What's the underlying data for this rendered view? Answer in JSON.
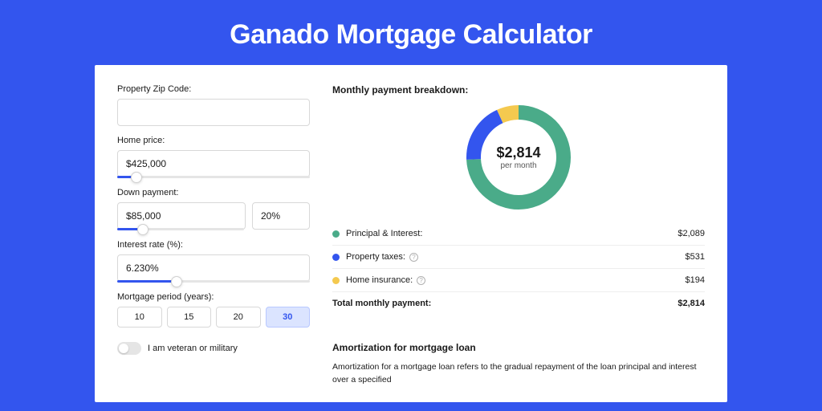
{
  "title": "Ganado Mortgage Calculator",
  "colors": {
    "page_bg": "#3355ee",
    "card_bg": "#ffffff",
    "text": "#1a1a1a",
    "border": "#d8d8d8",
    "slider_fill": "#3355ee",
    "period_active_bg": "#dbe4ff"
  },
  "form": {
    "zip": {
      "label": "Property Zip Code:",
      "value": ""
    },
    "home_price": {
      "label": "Home price:",
      "value": "$425,000",
      "slider_pct": 10
    },
    "down_payment": {
      "label": "Down payment:",
      "amount": "$85,000",
      "percent": "20%",
      "slider_pct": 20
    },
    "interest_rate": {
      "label": "Interest rate (%):",
      "value": "6.230%",
      "slider_pct": 31
    },
    "mortgage_period": {
      "label": "Mortgage period (years):",
      "options": [
        "10",
        "15",
        "20",
        "30"
      ],
      "active": "30"
    },
    "veteran": {
      "label": "I am veteran or military",
      "on": false
    }
  },
  "breakdown": {
    "title": "Monthly payment breakdown:",
    "center_amount": "$2,814",
    "center_sub": "per month",
    "donut": {
      "size": 130,
      "stroke": 18,
      "segments": [
        {
          "name": "principal_interest",
          "color": "#4aab89",
          "fraction": 0.742
        },
        {
          "name": "property_taxes",
          "color": "#3355ee",
          "fraction": 0.189
        },
        {
          "name": "home_insurance",
          "color": "#f4c94f",
          "fraction": 0.069
        }
      ]
    },
    "items": [
      {
        "label": "Principal & Interest:",
        "value": "$2,089",
        "color": "#4aab89",
        "info": false
      },
      {
        "label": "Property taxes:",
        "value": "$531",
        "color": "#3355ee",
        "info": true
      },
      {
        "label": "Home insurance:",
        "value": "$194",
        "color": "#f4c94f",
        "info": true
      }
    ],
    "total": {
      "label": "Total monthly payment:",
      "value": "$2,814"
    }
  },
  "amortization": {
    "title": "Amortization for mortgage loan",
    "text": "Amortization for a mortgage loan refers to the gradual repayment of the loan principal and interest over a specified"
  }
}
